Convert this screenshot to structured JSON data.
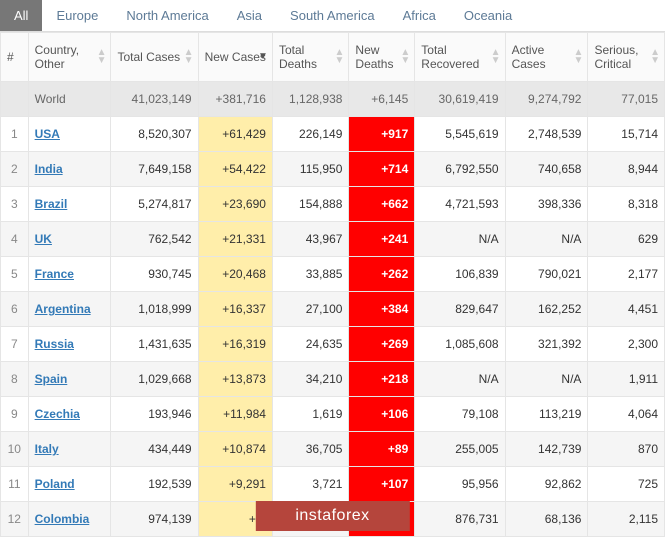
{
  "tabs": [
    "All",
    "Europe",
    "North America",
    "Asia",
    "South America",
    "Africa",
    "Oceania"
  ],
  "activeTab": 0,
  "columns": [
    "#",
    "Country, Other",
    "Total Cases",
    "New Cases",
    "Total Deaths",
    "New Deaths",
    "Total Recovered",
    "Active Cases",
    "Serious, Critical"
  ],
  "worldRow": {
    "country": "World",
    "totalCases": "41,023,149",
    "newCases": "+381,716",
    "totalDeaths": "1,128,938",
    "newDeaths": "+6,145",
    "recovered": "30,619,419",
    "active": "9,274,792",
    "serious": "77,015"
  },
  "rows": [
    {
      "rank": "1",
      "country": "USA",
      "totalCases": "8,520,307",
      "newCases": "+61,429",
      "totalDeaths": "226,149",
      "newDeaths": "+917",
      "recovered": "5,545,619",
      "active": "2,748,539",
      "serious": "15,714"
    },
    {
      "rank": "2",
      "country": "India",
      "totalCases": "7,649,158",
      "newCases": "+54,422",
      "totalDeaths": "115,950",
      "newDeaths": "+714",
      "recovered": "6,792,550",
      "active": "740,658",
      "serious": "8,944"
    },
    {
      "rank": "3",
      "country": "Brazil",
      "totalCases": "5,274,817",
      "newCases": "+23,690",
      "totalDeaths": "154,888",
      "newDeaths": "+662",
      "recovered": "4,721,593",
      "active": "398,336",
      "serious": "8,318"
    },
    {
      "rank": "4",
      "country": "UK",
      "totalCases": "762,542",
      "newCases": "+21,331",
      "totalDeaths": "43,967",
      "newDeaths": "+241",
      "recovered": "N/A",
      "active": "N/A",
      "serious": "629"
    },
    {
      "rank": "5",
      "country": "France",
      "totalCases": "930,745",
      "newCases": "+20,468",
      "totalDeaths": "33,885",
      "newDeaths": "+262",
      "recovered": "106,839",
      "active": "790,021",
      "serious": "2,177"
    },
    {
      "rank": "6",
      "country": "Argentina",
      "totalCases": "1,018,999",
      "newCases": "+16,337",
      "totalDeaths": "27,100",
      "newDeaths": "+384",
      "recovered": "829,647",
      "active": "162,252",
      "serious": "4,451"
    },
    {
      "rank": "7",
      "country": "Russia",
      "totalCases": "1,431,635",
      "newCases": "+16,319",
      "totalDeaths": "24,635",
      "newDeaths": "+269",
      "recovered": "1,085,608",
      "active": "321,392",
      "serious": "2,300"
    },
    {
      "rank": "8",
      "country": "Spain",
      "totalCases": "1,029,668",
      "newCases": "+13,873",
      "totalDeaths": "34,210",
      "newDeaths": "+218",
      "recovered": "N/A",
      "active": "N/A",
      "serious": "1,911"
    },
    {
      "rank": "9",
      "country": "Czechia",
      "totalCases": "193,946",
      "newCases": "+11,984",
      "totalDeaths": "1,619",
      "newDeaths": "+106",
      "recovered": "79,108",
      "active": "113,219",
      "serious": "4,064"
    },
    {
      "rank": "10",
      "country": "Italy",
      "totalCases": "434,449",
      "newCases": "+10,874",
      "totalDeaths": "36,705",
      "newDeaths": "+89",
      "recovered": "255,005",
      "active": "142,739",
      "serious": "870"
    },
    {
      "rank": "11",
      "country": "Poland",
      "totalCases": "192,539",
      "newCases": "+9,291",
      "totalDeaths": "3,721",
      "newDeaths": "+107",
      "recovered": "95,956",
      "active": "92,862",
      "serious": "725"
    },
    {
      "rank": "12",
      "country": "Colombia",
      "totalCases": "974,139",
      "newCases": "+8,",
      "totalDeaths": "",
      "newDeaths": "",
      "recovered": "876,731",
      "active": "68,136",
      "serious": "2,115"
    }
  ],
  "watermark": "instaforex"
}
